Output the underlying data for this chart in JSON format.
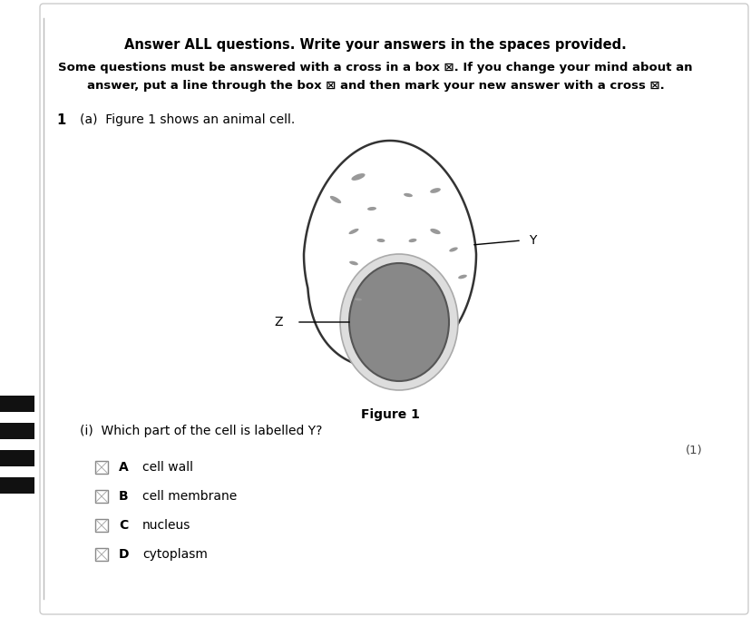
{
  "bg_color": "#ffffff",
  "panel_bg": "#f8f8f8",
  "title_bold": "Answer ALL questions. Write your answers in the spaces provided.",
  "subtitle_line1": "Some questions must be answered with a cross in a box ⊠. If you change your mind about an",
  "subtitle_line2": "answer, put a line through the box ⊠ and then mark your new answer with a cross ⊠.",
  "question_num": "1",
  "question_text": "(a)  Figure 1 shows an animal cell.",
  "figure_label": "Figure 1",
  "sub_question": "(i)  Which part of the cell is labelled Y?",
  "mark": "(1)",
  "options": [
    {
      "letter": "A",
      "text": "cell wall"
    },
    {
      "letter": "B",
      "text": "cell membrane"
    },
    {
      "letter": "C",
      "text": "nucleus"
    },
    {
      "letter": "D",
      "text": "cytoplasm"
    }
  ],
  "left_bar_color": "#111111",
  "nucleus_color": "#888888",
  "nucleus_edge_color": "#555555",
  "nucleus_envelope_color": "#aaaaaa",
  "cell_line_color": "#333333",
  "dot_color": "#999999"
}
